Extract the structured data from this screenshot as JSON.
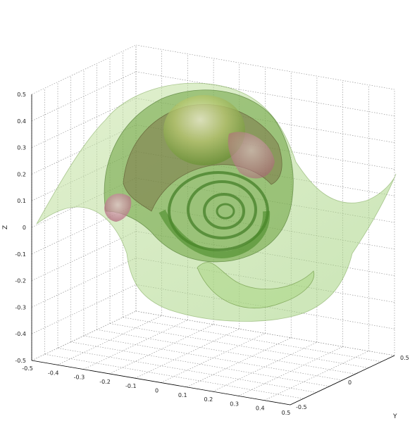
{
  "chart_data": {
    "type": "3d-surface",
    "title": "",
    "xlabel": "",
    "ylabel": "Y",
    "zlabel": "Z",
    "x_ticks": [
      "-0.5",
      "-0.4",
      "-0.3",
      "-0.2",
      "-0.1",
      "0",
      "0.1",
      "0.2",
      "0.3",
      "0.4",
      "0.5"
    ],
    "y_ticks": [
      "-0.5",
      "0",
      "0.5"
    ],
    "z_ticks": [
      "-0.5",
      "-0.4",
      "-0.3",
      "-0.2",
      "-0.1",
      "0",
      "0.1",
      "0.2",
      "0.3",
      "0.4",
      "0.5"
    ],
    "xlim": [
      -0.5,
      0.5
    ],
    "ylim": [
      -0.5,
      0.5
    ],
    "zlim": [
      -0.5,
      0.5
    ],
    "grid": true,
    "surface_colors": [
      "#7fb85a",
      "#4f8f2f",
      "#c07090",
      "#e8f0c0"
    ]
  }
}
